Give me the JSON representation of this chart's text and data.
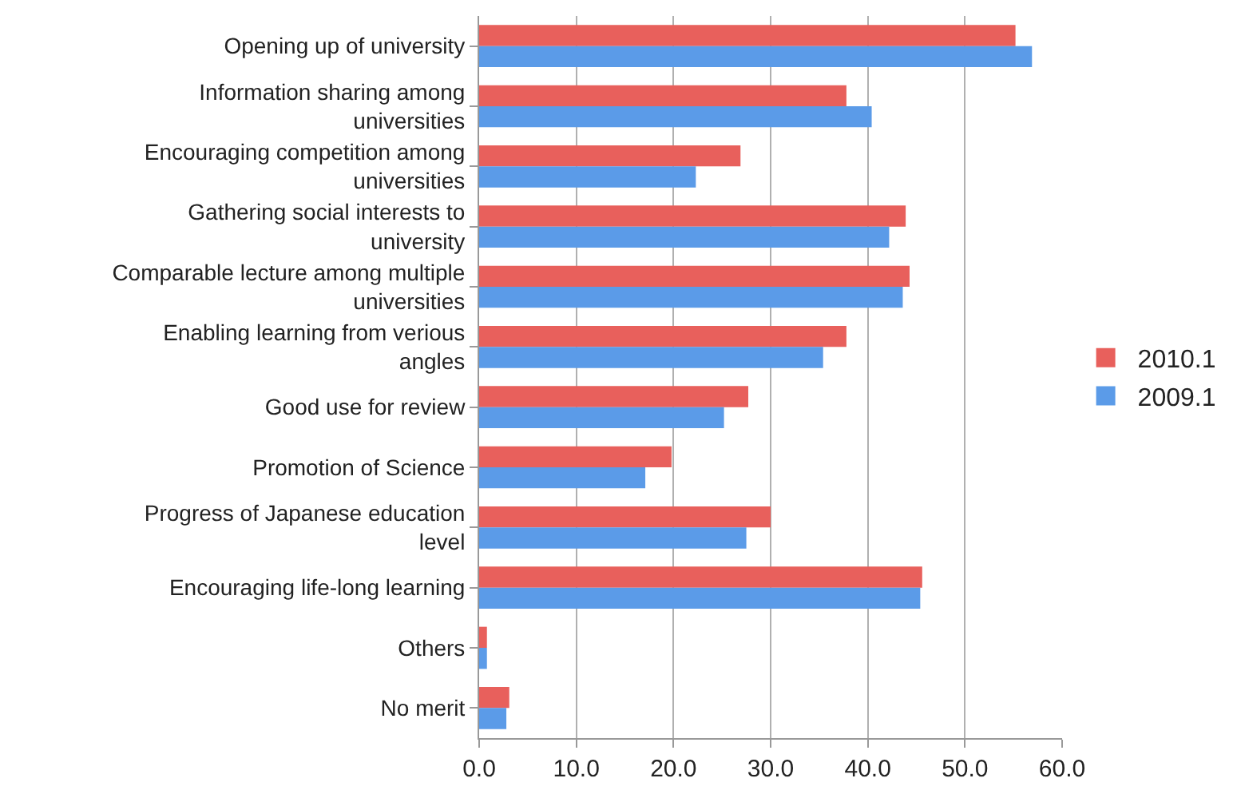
{
  "chart_data": {
    "type": "bar",
    "orientation": "horizontal",
    "categories": [
      "Opening up of university",
      "Information sharing among universities",
      "Encouraging competition among universities",
      "Gathering social interests to university",
      "Comparable lecture among multiple universities",
      "Enabling learning from verious angles",
      "Good use for review",
      "Promotion of Science",
      "Progress of Japanese education level",
      "Encouraging life-long learning",
      "Others",
      "No merit"
    ],
    "series": [
      {
        "name": "2010.1",
        "color": "#e8605c",
        "values": [
          55.2,
          37.8,
          26.9,
          43.9,
          44.3,
          37.8,
          27.7,
          19.8,
          30.0,
          45.6,
          0.8,
          3.1
        ]
      },
      {
        "name": "2009.1",
        "color": "#5b9be8",
        "values": [
          56.9,
          40.4,
          22.3,
          42.2,
          43.6,
          35.4,
          25.2,
          17.1,
          27.5,
          45.4,
          0.8,
          2.8
        ]
      }
    ],
    "xlim": [
      0,
      60
    ],
    "xticks": [
      {
        "value": 0,
        "label": "0.0"
      },
      {
        "value": 10,
        "label": "10.0"
      },
      {
        "value": 20,
        "label": "20.0"
      },
      {
        "value": 30,
        "label": "30.0"
      },
      {
        "value": 40,
        "label": "40.0"
      },
      {
        "value": 50,
        "label": "50.0"
      },
      {
        "value": 60,
        "label": "60.0"
      }
    ],
    "grid": "x",
    "legend": "right"
  }
}
